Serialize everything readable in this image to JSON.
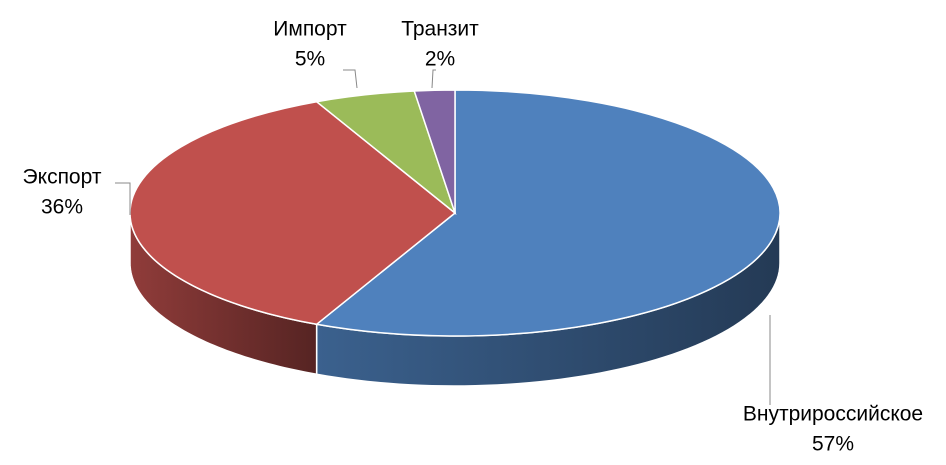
{
  "chart_data": {
    "type": "pie",
    "categories": [
      "Внутрироссийское",
      "Экспорт",
      "Импорт",
      "Транзит"
    ],
    "values": [
      57,
      36,
      5,
      2
    ],
    "value_labels": [
      "57%",
      "36%",
      "5%",
      "2%"
    ],
    "colors": [
      "#4f81bd",
      "#c0504d",
      "#9bbb59",
      "#8064a2"
    ]
  }
}
